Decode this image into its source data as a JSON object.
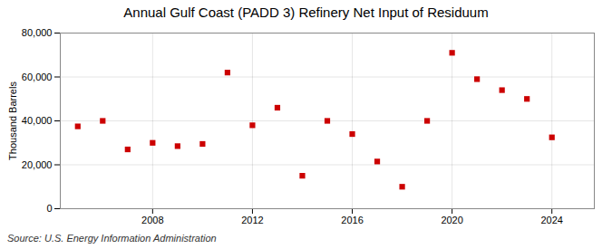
{
  "chart_data": {
    "type": "scatter",
    "title": "Annual Gulf Coast (PADD 3) Refinery Net Input of Residuum",
    "ylabel": "Thousand Barrels",
    "source": "Source: U.S. Energy Information Administration",
    "x": [
      2005,
      2006,
      2007,
      2008,
      2009,
      2010,
      2011,
      2012,
      2013,
      2014,
      2015,
      2016,
      2017,
      2018,
      2019,
      2020,
      2021,
      2022,
      2023,
      2024
    ],
    "values": [
      37500,
      40000,
      27000,
      30000,
      28500,
      29500,
      62000,
      38000,
      46000,
      15000,
      40000,
      34000,
      21500,
      10000,
      40000,
      71000,
      59000,
      54000,
      50000,
      32500
    ],
    "color": "#cc0000",
    "marker": "square",
    "xlim": [
      2004.3,
      2025.7
    ],
    "xticks": [
      2008,
      2012,
      2016,
      2020,
      2024
    ],
    "ylim": [
      0,
      80000
    ],
    "yticks": [
      0,
      {
        "value": 20000,
        "label": "20,000"
      },
      {
        "value": 40000,
        "label": "40,000"
      },
      {
        "value": 60000,
        "label": "60,000"
      },
      {
        "value": 80000,
        "label": "80,000"
      }
    ],
    "grid": true
  }
}
